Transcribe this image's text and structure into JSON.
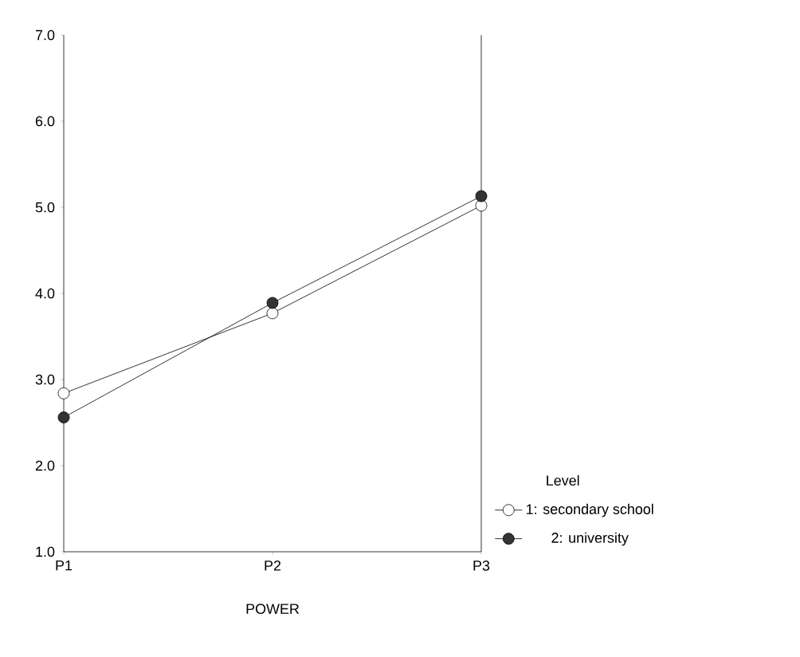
{
  "chart_data": {
    "type": "line",
    "xlabel": "POWER",
    "legend_title": "Level",
    "categories": [
      "P1",
      "P2",
      "P3"
    ],
    "series": [
      {
        "name": "1: secondary school",
        "color": "#ffffff",
        "values": [
          2.84,
          3.77,
          5.02
        ]
      },
      {
        "name": "2: university",
        "color": "#333333",
        "values": [
          2.56,
          3.89,
          5.13
        ]
      }
    ],
    "ylim": [
      1,
      7
    ],
    "yticks": [
      {
        "value": 1,
        "label": "1.0"
      },
      {
        "value": 2,
        "label": "2.0"
      },
      {
        "value": 3,
        "label": "3.0"
      },
      {
        "value": 4,
        "label": "4.0"
      },
      {
        "value": 5,
        "label": "5.0"
      },
      {
        "value": 6,
        "label": "6.0"
      },
      {
        "value": 7,
        "label": "7.0"
      }
    ],
    "marker": "circle",
    "legend": "right",
    "grid": false
  }
}
